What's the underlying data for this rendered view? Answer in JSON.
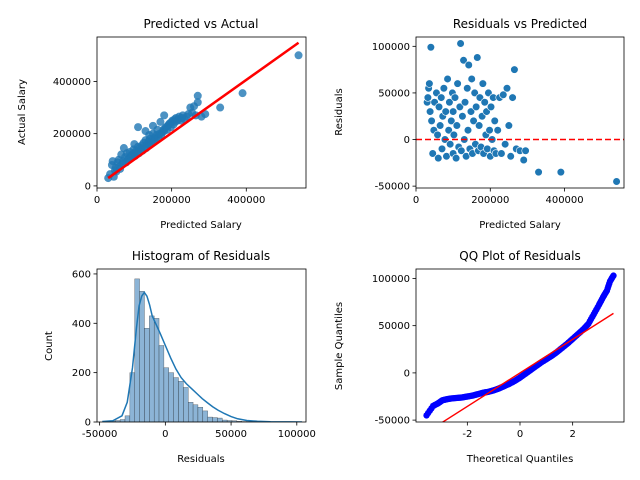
{
  "chart_data": [
    {
      "type": "scatter",
      "title": "Predicted vs Actual",
      "xlabel": "Predicted Salary",
      "ylabel": "Actual Salary",
      "xlim": [
        0,
        560000
      ],
      "ylim": [
        -8000,
        570000
      ],
      "xticks": [
        0,
        200000,
        400000
      ],
      "yticks": [
        0,
        200000,
        400000
      ],
      "point_color": "#1f77b4",
      "line_color": "#ff0000",
      "fit_line": {
        "x": [
          30000,
          540000
        ],
        "y": [
          30000,
          548000
        ]
      },
      "points": [
        [
          30000,
          30000
        ],
        [
          35000,
          45000
        ],
        [
          40000,
          80000
        ],
        [
          42000,
          95000
        ],
        [
          45000,
          35000
        ],
        [
          48000,
          60000
        ],
        [
          50000,
          70000
        ],
        [
          52000,
          55000
        ],
        [
          55000,
          90000
        ],
        [
          58000,
          100000
        ],
        [
          60000,
          75000
        ],
        [
          62000,
          65000
        ],
        [
          65000,
          120000
        ],
        [
          68000,
          85000
        ],
        [
          70000,
          95000
        ],
        [
          72000,
          145000
        ],
        [
          75000,
          110000
        ],
        [
          78000,
          90000
        ],
        [
          80000,
          125000
        ],
        [
          82000,
          100000
        ],
        [
          85000,
          105000
        ],
        [
          88000,
          130000
        ],
        [
          90000,
          115000
        ],
        [
          92000,
          110000
        ],
        [
          95000,
          120000
        ],
        [
          98000,
          140000
        ],
        [
          100000,
          125000
        ],
        [
          100000,
          160000
        ],
        [
          102000,
          115000
        ],
        [
          105000,
          135000
        ],
        [
          108000,
          130000
        ],
        [
          110000,
          150000
        ],
        [
          110000,
          225000
        ],
        [
          112000,
          125000
        ],
        [
          115000,
          145000
        ],
        [
          118000,
          140000
        ],
        [
          120000,
          155000
        ],
        [
          122000,
          135000
        ],
        [
          125000,
          165000
        ],
        [
          128000,
          150000
        ],
        [
          130000,
          175000
        ],
        [
          130000,
          210000
        ],
        [
          132000,
          145000
        ],
        [
          135000,
          160000
        ],
        [
          138000,
          170000
        ],
        [
          140000,
          155000
        ],
        [
          140000,
          195000
        ],
        [
          142000,
          180000
        ],
        [
          145000,
          165000
        ],
        [
          148000,
          175000
        ],
        [
          150000,
          200000
        ],
        [
          150000,
          230000
        ],
        [
          152000,
          170000
        ],
        [
          155000,
          185000
        ],
        [
          158000,
          180000
        ],
        [
          160000,
          195000
        ],
        [
          162000,
          215000
        ],
        [
          165000,
          185000
        ],
        [
          168000,
          200000
        ],
        [
          170000,
          245000
        ],
        [
          172000,
          195000
        ],
        [
          175000,
          205000
        ],
        [
          178000,
          215000
        ],
        [
          180000,
          210000
        ],
        [
          180000,
          270000
        ],
        [
          182000,
          220000
        ],
        [
          185000,
          225000
        ],
        [
          188000,
          215000
        ],
        [
          190000,
          230000
        ],
        [
          192000,
          235000
        ],
        [
          195000,
          240000
        ],
        [
          198000,
          225000
        ],
        [
          200000,
          245000
        ],
        [
          202000,
          250000
        ],
        [
          205000,
          235000
        ],
        [
          208000,
          255000
        ],
        [
          210000,
          245000
        ],
        [
          212000,
          260000
        ],
        [
          215000,
          250000
        ],
        [
          218000,
          255000
        ],
        [
          220000,
          265000
        ],
        [
          225000,
          250000
        ],
        [
          228000,
          260000
        ],
        [
          230000,
          270000
        ],
        [
          235000,
          255000
        ],
        [
          240000,
          265000
        ],
        [
          245000,
          275000
        ],
        [
          250000,
          300000
        ],
        [
          255000,
          280000
        ],
        [
          260000,
          305000
        ],
        [
          265000,
          270000
        ],
        [
          270000,
          345000
        ],
        [
          270000,
          320000
        ],
        [
          280000,
          265000
        ],
        [
          290000,
          275000
        ],
        [
          330000,
          300000
        ],
        [
          390000,
          355000
        ],
        [
          540000,
          500000
        ]
      ]
    },
    {
      "type": "scatter",
      "title": "Residuals vs Predicted",
      "xlabel": "Predicted Salary",
      "ylabel": "Residuals",
      "xlim": [
        0,
        560000
      ],
      "ylim": [
        -52000,
        110000
      ],
      "xticks": [
        0,
        200000,
        400000
      ],
      "yticks": [
        -50000,
        0,
        50000,
        100000
      ],
      "point_color": "#1f77b4",
      "zero_line_color": "#ff0000",
      "points": [
        [
          30000,
          40000
        ],
        [
          32000,
          45000
        ],
        [
          34000,
          55000
        ],
        [
          36000,
          60000
        ],
        [
          38000,
          30000
        ],
        [
          40000,
          99000
        ],
        [
          42000,
          20000
        ],
        [
          45000,
          -15000
        ],
        [
          48000,
          10000
        ],
        [
          50000,
          40000
        ],
        [
          55000,
          50000
        ],
        [
          58000,
          5000
        ],
        [
          60000,
          -20000
        ],
        [
          62000,
          35000
        ],
        [
          65000,
          15000
        ],
        [
          68000,
          45000
        ],
        [
          70000,
          -10000
        ],
        [
          72000,
          25000
        ],
        [
          75000,
          55000
        ],
        [
          78000,
          0
        ],
        [
          80000,
          30000
        ],
        [
          82000,
          -18000
        ],
        [
          85000,
          65000
        ],
        [
          88000,
          10000
        ],
        [
          90000,
          40000
        ],
        [
          92000,
          -5000
        ],
        [
          95000,
          20000
        ],
        [
          98000,
          50000
        ],
        [
          100000,
          -15000
        ],
        [
          100000,
          30000
        ],
        [
          102000,
          5000
        ],
        [
          105000,
          45000
        ],
        [
          108000,
          -20000
        ],
        [
          110000,
          15000
        ],
        [
          112000,
          60000
        ],
        [
          115000,
          -8000
        ],
        [
          118000,
          35000
        ],
        [
          120000,
          103000
        ],
        [
          122000,
          -12000
        ],
        [
          125000,
          25000
        ],
        [
          128000,
          85000
        ],
        [
          130000,
          0
        ],
        [
          132000,
          40000
        ],
        [
          135000,
          -18000
        ],
        [
          138000,
          55000
        ],
        [
          140000,
          10000
        ],
        [
          142000,
          80000
        ],
        [
          145000,
          -10000
        ],
        [
          148000,
          30000
        ],
        [
          150000,
          65000
        ],
        [
          152000,
          -15000
        ],
        [
          155000,
          20000
        ],
        [
          158000,
          50000
        ],
        [
          160000,
          -5000
        ],
        [
          162000,
          35000
        ],
        [
          165000,
          88000
        ],
        [
          168000,
          -12000
        ],
        [
          170000,
          15000
        ],
        [
          172000,
          45000
        ],
        [
          175000,
          -8000
        ],
        [
          178000,
          25000
        ],
        [
          180000,
          60000
        ],
        [
          182000,
          -15000
        ],
        [
          185000,
          40000
        ],
        [
          188000,
          5000
        ],
        [
          190000,
          30000
        ],
        [
          192000,
          -10000
        ],
        [
          195000,
          50000
        ],
        [
          198000,
          10000
        ],
        [
          200000,
          -18000
        ],
        [
          202000,
          35000
        ],
        [
          205000,
          0
        ],
        [
          208000,
          45000
        ],
        [
          210000,
          -12000
        ],
        [
          212000,
          20000
        ],
        [
          215000,
          -15000
        ],
        [
          220000,
          10000
        ],
        [
          225000,
          45000
        ],
        [
          230000,
          -15000
        ],
        [
          235000,
          48000
        ],
        [
          240000,
          -5000
        ],
        [
          245000,
          55000
        ],
        [
          250000,
          15000
        ],
        [
          255000,
          -18000
        ],
        [
          260000,
          45000
        ],
        [
          265000,
          75000
        ],
        [
          270000,
          -10000
        ],
        [
          280000,
          -12000
        ],
        [
          290000,
          -22000
        ],
        [
          295000,
          -12000
        ],
        [
          330000,
          -35000
        ],
        [
          390000,
          -35000
        ],
        [
          540000,
          -45000
        ]
      ]
    },
    {
      "type": "bar",
      "title": "Histogram of Residuals",
      "xlabel": "Residuals",
      "ylabel": "Count",
      "xlim": [
        -52000,
        107000
      ],
      "ylim": [
        0,
        620
      ],
      "xticks": [
        -50000,
        0,
        50000,
        100000
      ],
      "yticks": [
        0,
        200,
        400,
        600
      ],
      "bar_color": "#8cb4d6",
      "kde_color": "#1f77b4",
      "bin_width": 3700,
      "bins_start": -45500,
      "counts": [
        2,
        4,
        6,
        10,
        25,
        200,
        580,
        530,
        380,
        430,
        420,
        310,
        220,
        200,
        180,
        165,
        140,
        80,
        70,
        60,
        45,
        20,
        18,
        16,
        8,
        6,
        5,
        3,
        2,
        2,
        1,
        1,
        1,
        1,
        0,
        0,
        0,
        0,
        1,
        0,
        0
      ],
      "kde": [
        [
          -48000,
          2
        ],
        [
          -40000,
          5
        ],
        [
          -33000,
          25
        ],
        [
          -29000,
          80
        ],
        [
          -25000,
          220
        ],
        [
          -22000,
          380
        ],
        [
          -20000,
          470
        ],
        [
          -18000,
          510
        ],
        [
          -16000,
          525
        ],
        [
          -14000,
          510
        ],
        [
          -12000,
          475
        ],
        [
          -10000,
          430
        ],
        [
          -7000,
          395
        ],
        [
          -4000,
          360
        ],
        [
          0,
          310
        ],
        [
          4000,
          260
        ],
        [
          8000,
          215
        ],
        [
          12000,
          180
        ],
        [
          16000,
          155
        ],
        [
          20000,
          135
        ],
        [
          24000,
          115
        ],
        [
          28000,
          95
        ],
        [
          32000,
          78
        ],
        [
          36000,
          62
        ],
        [
          40000,
          48
        ],
        [
          45000,
          34
        ],
        [
          50000,
          22
        ],
        [
          55000,
          13
        ],
        [
          62000,
          6
        ],
        [
          70000,
          3
        ],
        [
          80000,
          1
        ],
        [
          95000,
          0.5
        ],
        [
          104000,
          0.2
        ]
      ]
    },
    {
      "type": "scatter",
      "title": "QQ Plot of Residuals",
      "xlabel": "Theoretical Quantiles",
      "ylabel": "Sample Quantiles",
      "xlim": [
        -3.95,
        3.95
      ],
      "ylim": [
        -52000,
        110000
      ],
      "xticks": [
        -2,
        0,
        2
      ],
      "yticks": [
        -50000,
        0,
        50000,
        100000
      ],
      "point_color": "#0000ff",
      "line_color": "#ff0000",
      "ref_line": {
        "x": [
          -3.55,
          3.55
        ],
        "y": [
          -63000,
          63000
        ]
      },
      "points": [
        [
          -3.55,
          -45000
        ],
        [
          -3.3,
          -35000
        ],
        [
          -3.1,
          -32000
        ],
        [
          -2.95,
          -29000
        ],
        [
          -2.8,
          -28000
        ],
        [
          -2.6,
          -27000
        ],
        [
          -2.4,
          -26500
        ],
        [
          -2.2,
          -26000
        ],
        [
          -2.0,
          -25000
        ],
        [
          -1.8,
          -24000
        ],
        [
          -1.6,
          -22500
        ],
        [
          -1.4,
          -21000
        ],
        [
          -1.2,
          -20000
        ],
        [
          -1.0,
          -18500
        ],
        [
          -0.8,
          -16500
        ],
        [
          -0.6,
          -14000
        ],
        [
          -0.4,
          -11500
        ],
        [
          -0.2,
          -8500
        ],
        [
          0.0,
          -5000
        ],
        [
          0.2,
          -1000
        ],
        [
          0.4,
          3000
        ],
        [
          0.6,
          7000
        ],
        [
          0.8,
          11000
        ],
        [
          1.0,
          14500
        ],
        [
          1.2,
          18000
        ],
        [
          1.4,
          22000
        ],
        [
          1.6,
          26500
        ],
        [
          1.8,
          31000
        ],
        [
          2.0,
          36000
        ],
        [
          2.2,
          41000
        ],
        [
          2.4,
          46000
        ],
        [
          2.6,
          52000
        ],
        [
          2.8,
          62000
        ],
        [
          3.0,
          72000
        ],
        [
          3.15,
          80000
        ],
        [
          3.3,
          87000
        ],
        [
          3.42,
          97000
        ],
        [
          3.55,
          103000
        ]
      ]
    }
  ]
}
